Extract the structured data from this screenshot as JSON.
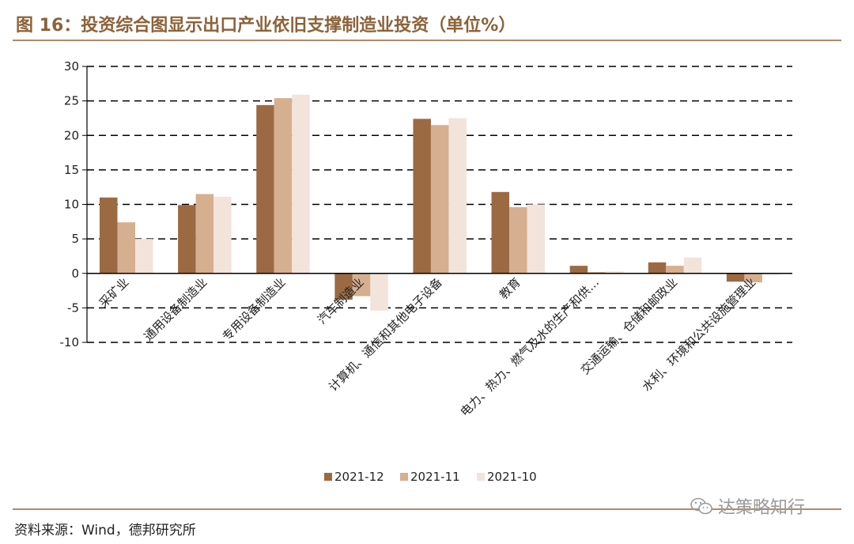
{
  "header": {
    "title": "图 16：投资综合图显示出口产业依旧支撑制造业投资（单位%）"
  },
  "footer": {
    "source": "资料来源：Wind，德邦研究所",
    "watermark": "达策略知行"
  },
  "chart_data": {
    "type": "bar",
    "title": "图 16：投资综合图显示出口产业依旧支撑制造业投资（单位%）",
    "xlabel": "",
    "ylabel": "",
    "ylim": [
      -10,
      30
    ],
    "yticks": [
      -10,
      -5,
      0,
      5,
      10,
      15,
      20,
      25,
      30
    ],
    "grid": "horizontal dashed",
    "legend_position": "bottom",
    "categories": [
      "采矿业",
      "通用设备制造业",
      "专用设备制造业",
      "汽车制造业",
      "计算机、通信和其他电子设备",
      "教育",
      "电力、热力、燃气及水的生产和供…",
      "交通运输、仓储和邮政业",
      "水利、环境和公共设施管理业"
    ],
    "series": [
      {
        "name": "2021-12",
        "color": "#9b6a43",
        "values": [
          11.0,
          9.9,
          24.4,
          -3.8,
          22.4,
          11.8,
          1.1,
          1.6,
          -1.2
        ]
      },
      {
        "name": "2021-11",
        "color": "#d6ae90",
        "values": [
          7.4,
          11.5,
          25.4,
          -3.3,
          21.5,
          9.6,
          0.2,
          1.1,
          -1.3
        ]
      },
      {
        "name": "2021-10",
        "color": "#f2e3db",
        "values": [
          5.0,
          11.1,
          25.9,
          -5.4,
          22.5,
          10.0,
          0.3,
          2.3,
          -0.2
        ]
      }
    ]
  }
}
